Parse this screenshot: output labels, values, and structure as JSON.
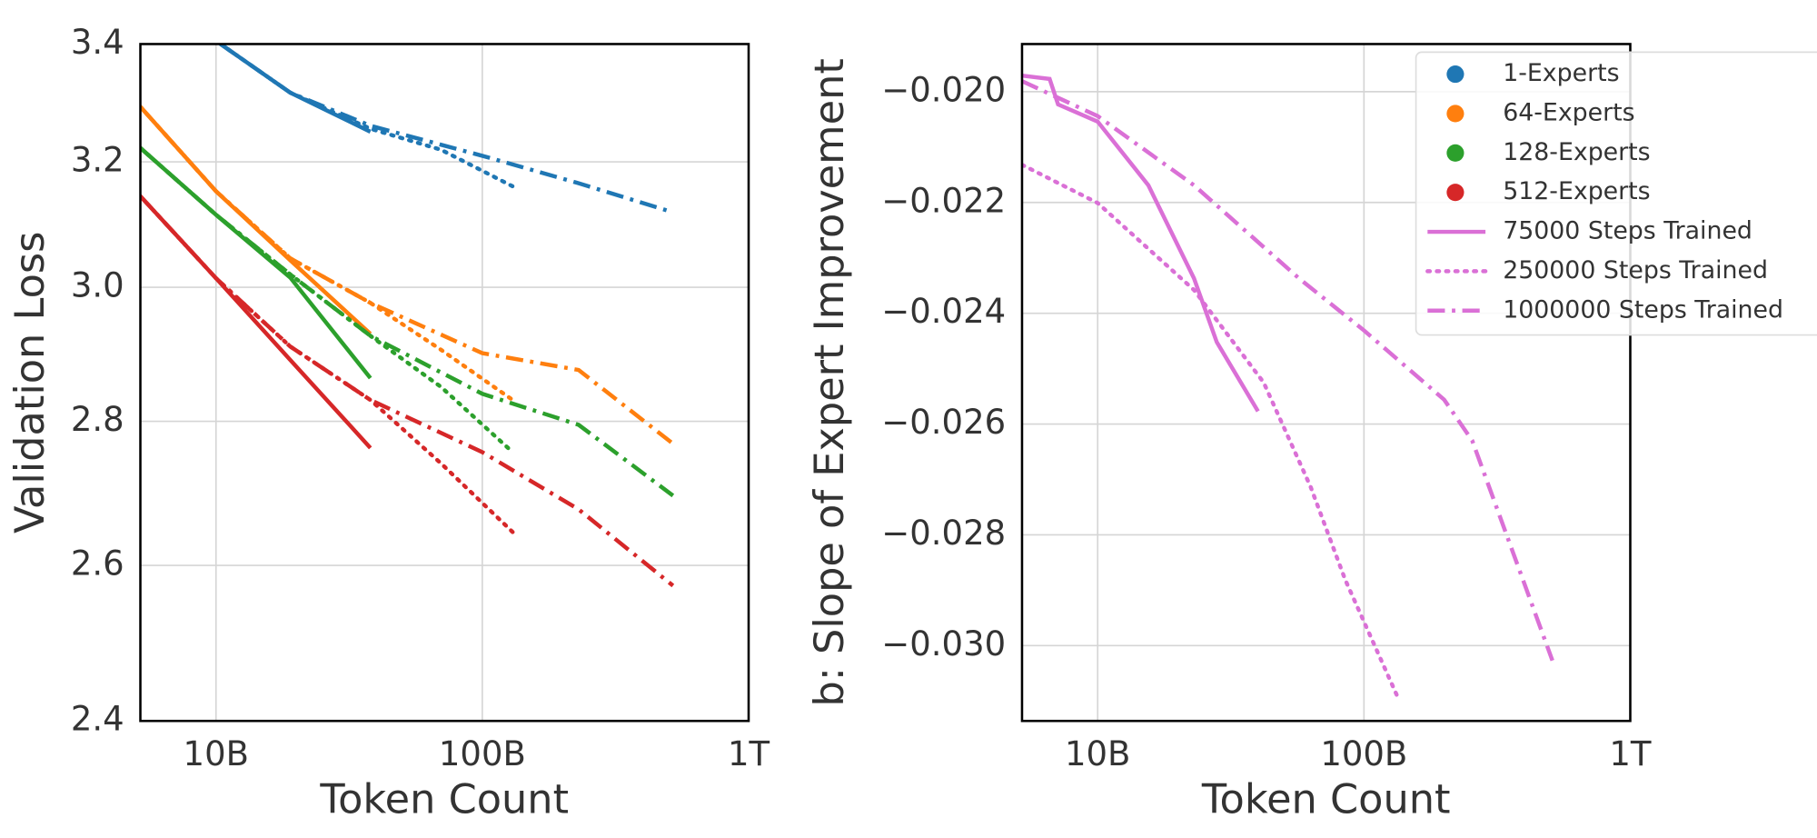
{
  "chart_data": [
    {
      "type": "line",
      "x_label": "Token Count",
      "y_label": "Validation Loss",
      "xscale": "log",
      "yscale": "log",
      "grid": true,
      "xlim": [
        5200000000.0,
        1000000000000.0
      ],
      "ylim": [
        2.4,
        3.4
      ],
      "xticks": [
        {
          "value": 10000000000.0,
          "label": "10B"
        },
        {
          "value": 100000000000.0,
          "label": "100B"
        },
        {
          "value": 1000000000000.0,
          "label": "1T"
        }
      ],
      "yticks": [
        2.4,
        2.6,
        2.8,
        {
          "value": 3,
          "label": "3.0"
        },
        3.2,
        3.4
      ],
      "series": [
        {
          "color": "#1f77b4",
          "linestyle": "solid",
          "x": [
            10400000000.0,
            19000000000.0,
            38000000000.0
          ],
          "values": [
            3.4,
            3.316,
            3.25
          ]
        },
        {
          "color": "#1f77b4",
          "linestyle": "dotted",
          "x": [
            10400000000.0,
            19000000000.0,
            38000000000.0,
            70000000000.0,
            130000000000.0
          ],
          "values": [
            3.4,
            3.316,
            3.255,
            3.22,
            3.16
          ]
        },
        {
          "color": "#1f77b4",
          "linestyle": "dashdot",
          "x": [
            10400000000.0,
            19000000000.0,
            38000000000.0,
            100000000000.0,
            230000000000.0,
            520000000000.0
          ],
          "values": [
            3.4,
            3.316,
            3.26,
            3.21,
            3.165,
            3.118
          ]
        },
        {
          "color": "#ff7f0e",
          "linestyle": "solid",
          "x": [
            5200000000.0,
            10000000000.0,
            19000000000.0,
            38000000000.0
          ],
          "values": [
            3.292,
            3.152,
            3.042,
            2.929
          ]
        },
        {
          "color": "#ff7f0e",
          "linestyle": "dotted",
          "x": [
            5200000000.0,
            10000000000.0,
            19000000000.0,
            38000000000.0,
            70000000000.0,
            130000000000.0
          ],
          "values": [
            3.292,
            3.152,
            3.045,
            2.976,
            2.905,
            2.831
          ]
        },
        {
          "color": "#ff7f0e",
          "linestyle": "dashdot",
          "x": [
            5200000000.0,
            10000000000.0,
            19000000000.0,
            38000000000.0,
            100000000000.0,
            230000000000.0,
            520000000000.0
          ],
          "values": [
            3.292,
            3.152,
            3.045,
            2.976,
            2.9,
            2.875,
            2.768
          ]
        },
        {
          "color": "#2ca02c",
          "linestyle": "solid",
          "x": [
            5200000000.0,
            10000000000.0,
            19000000000.0,
            38000000000.0
          ],
          "values": [
            3.223,
            3.114,
            3.015,
            2.863
          ]
        },
        {
          "color": "#2ca02c",
          "linestyle": "dotted",
          "x": [
            5200000000.0,
            10000000000.0,
            19000000000.0,
            38000000000.0,
            70000000000.0,
            130000000000.0
          ],
          "values": [
            3.223,
            3.114,
            3.02,
            2.926,
            2.85,
            2.756
          ]
        },
        {
          "color": "#2ca02c",
          "linestyle": "dashdot",
          "x": [
            5200000000.0,
            10000000000.0,
            19000000000.0,
            38000000000.0,
            100000000000.0,
            230000000000.0,
            520000000000.0
          ],
          "values": [
            3.223,
            3.114,
            3.02,
            2.926,
            2.84,
            2.795,
            2.695
          ]
        },
        {
          "color": "#d62728",
          "linestyle": "solid",
          "x": [
            5200000000.0,
            10000000000.0,
            19000000000.0,
            38000000000.0
          ],
          "values": [
            3.144,
            3.014,
            2.89,
            2.762
          ]
        },
        {
          "color": "#d62728",
          "linestyle": "dotted",
          "x": [
            5200000000.0,
            10000000000.0,
            19000000000.0,
            38000000000.0,
            70000000000.0,
            130000000000.0
          ],
          "values": [
            3.144,
            3.014,
            2.91,
            2.831,
            2.74,
            2.645
          ]
        },
        {
          "color": "#d62728",
          "linestyle": "dashdot",
          "x": [
            5200000000.0,
            10000000000.0,
            19000000000.0,
            38000000000.0,
            100000000000.0,
            230000000000.0,
            520000000000.0
          ],
          "values": [
            3.144,
            3.014,
            2.91,
            2.831,
            2.756,
            2.676,
            2.573
          ]
        }
      ]
    },
    {
      "type": "line",
      "x_label": "Token Count",
      "y_label": "b: Slope of Expert Improvement",
      "xscale": "log",
      "yscale": "linear",
      "grid": true,
      "xlim": [
        5200000000.0,
        1000000000000.0
      ],
      "ylim": [
        -0.03136,
        -0.01914
      ],
      "xticks": [
        {
          "value": 10000000000.0,
          "label": "10B"
        },
        {
          "value": 100000000000.0,
          "label": "100B"
        },
        {
          "value": 1000000000000.0,
          "label": "1T"
        }
      ],
      "yticks": [
        {
          "value": -0.03,
          "label": "−0.030"
        },
        {
          "value": -0.028,
          "label": "−0.028"
        },
        {
          "value": -0.026,
          "label": "−0.026"
        },
        {
          "value": -0.024,
          "label": "−0.024"
        },
        {
          "value": -0.022,
          "label": "−0.022"
        },
        {
          "value": -0.02,
          "label": "−0.020"
        }
      ],
      "legend": "upper right",
      "color_key": [
        {
          "label": "1-Experts",
          "color": "#1f77b4"
        },
        {
          "label": "64-Experts",
          "color": "#ff7f0e"
        },
        {
          "label": "128-Experts",
          "color": "#2ca02c"
        },
        {
          "label": "512-Experts",
          "color": "#d62728"
        }
      ],
      "series": [
        {
          "name": "75000 Steps Trained",
          "color": "#da70d6",
          "linestyle": "solid",
          "x": [
            5200000000.0,
            6600000000.0,
            7100000000.0,
            10000000000.0,
            15500000000.0,
            23000000000.0,
            28000000000.0,
            40000000000.0
          ],
          "values": [
            -0.01971,
            -0.01977,
            -0.02023,
            -0.02054,
            -0.02169,
            -0.02337,
            -0.02452,
            -0.02577
          ]
        },
        {
          "name": "250000 Steps Trained",
          "color": "#da70d6",
          "linestyle": "dotted",
          "x": [
            5200000000.0,
            10000000000.0,
            23000000000.0,
            42000000000.0,
            63000000000.0,
            85000000000.0,
            133000000000.0
          ],
          "values": [
            -0.02132,
            -0.02201,
            -0.02358,
            -0.02525,
            -0.02713,
            -0.02881,
            -0.0309
          ]
        },
        {
          "name": "1000000 Steps Trained",
          "color": "#da70d6",
          "linestyle": "dashdot",
          "x": [
            5200000000.0,
            10000000000.0,
            23000000000.0,
            57000000000.0,
            100000000000.0,
            200000000000.0,
            255000000000.0,
            510000000000.0
          ],
          "values": [
            -0.01981,
            -0.02044,
            -0.02169,
            -0.02337,
            -0.02431,
            -0.02556,
            -0.0263,
            -0.03027
          ]
        }
      ]
    }
  ]
}
